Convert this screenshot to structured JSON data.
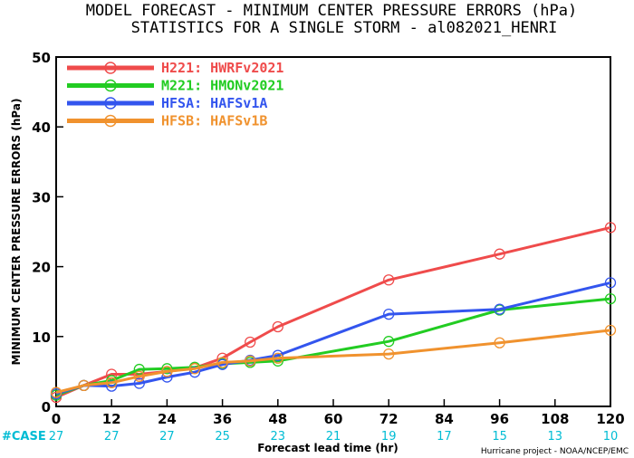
{
  "chart_data": {
    "type": "line",
    "title": "MODEL FORECAST - MINIMUM CENTER PRESSURE ERRORS (hPa)",
    "subtitle": "STATISTICS FOR A SINGLE STORM - al082021_HENRI",
    "xlabel": "Forecast lead time (hr)",
    "ylabel": "MINIMUM CENTER PRESSURE ERRORS (hPa)",
    "xlim": [
      0,
      120
    ],
    "ylim": [
      0,
      50
    ],
    "x_ticks": [
      0,
      12,
      24,
      36,
      48,
      60,
      72,
      84,
      96,
      108,
      120
    ],
    "y_ticks": [
      0,
      10,
      20,
      30,
      40,
      50
    ],
    "legend_position": "top-left",
    "series": [
      {
        "name": "H221: HWRFv2021",
        "color": "#ef4b4b",
        "x": [
          0,
          6,
          12,
          18,
          24,
          30,
          36,
          42,
          48,
          72,
          96,
          120
        ],
        "y": [
          1.3,
          3.0,
          4.6,
          4.6,
          5.0,
          5.5,
          6.9,
          9.2,
          11.4,
          18.1,
          21.8,
          25.6
        ]
      },
      {
        "name": "M221: HMONv2021",
        "color": "#22cc22",
        "x": [
          0,
          6,
          12,
          18,
          24,
          30,
          36,
          42,
          48,
          72,
          96,
          120
        ],
        "y": [
          1.6,
          3.0,
          3.7,
          5.3,
          5.4,
          5.6,
          6.1,
          6.3,
          6.5,
          9.3,
          13.8,
          15.4
        ]
      },
      {
        "name": "HFSA: HAFSv1A",
        "color": "#3355ee",
        "x": [
          0,
          6,
          12,
          18,
          24,
          30,
          36,
          42,
          48,
          72,
          96,
          120
        ],
        "y": [
          1.8,
          3.0,
          2.9,
          3.3,
          4.2,
          4.9,
          6.0,
          6.6,
          7.3,
          13.2,
          13.9,
          17.7
        ]
      },
      {
        "name": "HFSB: HAFSv1B",
        "color": "#f0922e",
        "x": [
          0,
          6,
          12,
          18,
          24,
          30,
          36,
          42,
          48,
          72,
          96,
          120
        ],
        "y": [
          2.0,
          3.0,
          3.4,
          4.3,
          5.0,
          5.4,
          6.3,
          6.5,
          6.9,
          7.5,
          9.1,
          10.9
        ]
      }
    ],
    "case_label": "#CASE",
    "cases": [
      {
        "x": 0,
        "label": "27"
      },
      {
        "x": 12,
        "label": "27"
      },
      {
        "x": 24,
        "label": "27"
      },
      {
        "x": 36,
        "label": "25"
      },
      {
        "x": 48,
        "label": "23"
      },
      {
        "x": 60,
        "label": "21"
      },
      {
        "x": 72,
        "label": "19"
      },
      {
        "x": 84,
        "label": "17"
      },
      {
        "x": 96,
        "label": "15"
      },
      {
        "x": 108,
        "label": "13"
      },
      {
        "x": 120,
        "label": "10"
      }
    ],
    "credit": "Hurricane project - NOAA/NCEP/EMC"
  }
}
